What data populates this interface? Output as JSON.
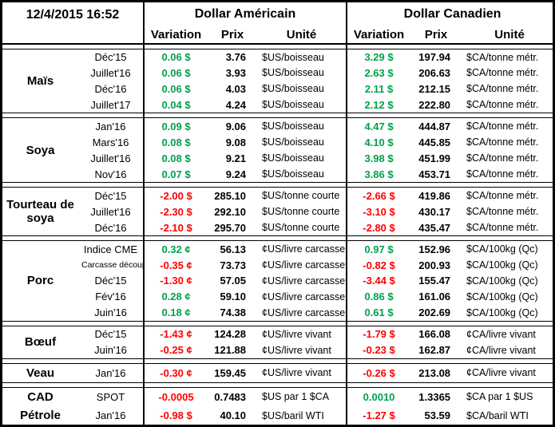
{
  "header": {
    "timestamp": "12/4/2015 16:52",
    "us_title": "Dollar Américain",
    "ca_title": "Dollar Canadien",
    "variation_label": "Variation",
    "prix_label": "Prix",
    "unite_label": "Unité"
  },
  "colors": {
    "positive": "#00A14B",
    "negative": "#FF0000",
    "border": "#000000",
    "background": "#FFFFFF"
  },
  "groups": [
    {
      "name": "Maïs",
      "sep_before": true,
      "rows": [
        {
          "contract": "Déc'15",
          "us_variation": "0.06 $",
          "us_prix": "3.76",
          "us_unite": "$US/boisseau",
          "ca_variation": "3.29 $",
          "ca_prix": "197.94",
          "ca_unite": "$CA/tonne métr."
        },
        {
          "contract": "Juillet'16",
          "us_variation": "0.06 $",
          "us_prix": "3.93",
          "us_unite": "$US/boisseau",
          "ca_variation": "2.63 $",
          "ca_prix": "206.63",
          "ca_unite": "$CA/tonne métr."
        },
        {
          "contract": "Déc'16",
          "us_variation": "0.06 $",
          "us_prix": "4.03",
          "us_unite": "$US/boisseau",
          "ca_variation": "2.11 $",
          "ca_prix": "212.15",
          "ca_unite": "$CA/tonne métr."
        },
        {
          "contract": "Juillet'17",
          "us_variation": "0.04 $",
          "us_prix": "4.24",
          "us_unite": "$US/boisseau",
          "ca_variation": "2.12 $",
          "ca_prix": "222.80",
          "ca_unite": "$CA/tonne métr."
        }
      ]
    },
    {
      "name": "Soya",
      "sep_before": true,
      "rows": [
        {
          "contract": "Jan'16",
          "us_variation": "0.09 $",
          "us_prix": "9.06",
          "us_unite": "$US/boisseau",
          "ca_variation": "4.47 $",
          "ca_prix": "444.87",
          "ca_unite": "$CA/tonne métr."
        },
        {
          "contract": "Mars'16",
          "us_variation": "0.08 $",
          "us_prix": "9.08",
          "us_unite": "$US/boisseau",
          "ca_variation": "4.10 $",
          "ca_prix": "445.85",
          "ca_unite": "$CA/tonne métr."
        },
        {
          "contract": "Juillet'16",
          "us_variation": "0.08 $",
          "us_prix": "9.21",
          "us_unite": "$US/boisseau",
          "ca_variation": "3.98 $",
          "ca_prix": "451.99",
          "ca_unite": "$CA/tonne métr."
        },
        {
          "contract": "Nov'16",
          "us_variation": "0.07 $",
          "us_prix": "9.24",
          "us_unite": "$US/boisseau",
          "ca_variation": "3.86 $",
          "ca_prix": "453.71",
          "ca_unite": "$CA/tonne métr."
        }
      ]
    },
    {
      "name": "Tourteau de soya",
      "sep_before": true,
      "rows": [
        {
          "contract": "Déc'15",
          "us_variation": "-2.00 $",
          "us_prix": "285.10",
          "us_unite": "$US/tonne courte",
          "ca_variation": "-2.66 $",
          "ca_prix": "419.86",
          "ca_unite": "$CA/tonne métr."
        },
        {
          "contract": "Juillet'16",
          "us_variation": "-2.30 $",
          "us_prix": "292.10",
          "us_unite": "$US/tonne courte",
          "ca_variation": "-3.10 $",
          "ca_prix": "430.17",
          "ca_unite": "$CA/tonne métr."
        },
        {
          "contract": "Déc'16",
          "us_variation": "-2.10 $",
          "us_prix": "295.70",
          "us_unite": "$US/tonne courte",
          "ca_variation": "-2.80 $",
          "ca_prix": "435.47",
          "ca_unite": "$CA/tonne métr."
        }
      ]
    },
    {
      "name": "Porc",
      "sep_before": true,
      "rows": [
        {
          "contract": "Indice CME",
          "us_variation": "0.32 ¢",
          "us_prix": "56.13",
          "us_unite": "¢US/livre carcasse",
          "ca_variation": "0.97 $",
          "ca_prix": "152.96",
          "ca_unite": "$CA/100kg (Qc)"
        },
        {
          "contract": "Carcasse découpée",
          "small": true,
          "us_variation": "-0.35 ¢",
          "us_prix": "73.73",
          "us_unite": "¢US/livre carcasse",
          "ca_variation": "-0.82 $",
          "ca_prix": "200.93",
          "ca_unite": "$CA/100kg (Qc)"
        },
        {
          "contract": "Déc'15",
          "us_variation": "-1.30 ¢",
          "us_prix": "57.05",
          "us_unite": "¢US/livre carcasse",
          "ca_variation": "-3.44 $",
          "ca_prix": "155.47",
          "ca_unite": "$CA/100kg (Qc)"
        },
        {
          "contract": "Fév'16",
          "us_variation": "0.28 ¢",
          "us_prix": "59.10",
          "us_unite": "¢US/livre carcasse",
          "ca_variation": "0.86 $",
          "ca_prix": "161.06",
          "ca_unite": "$CA/100kg (Qc)"
        },
        {
          "contract": "Juin'16",
          "us_variation": "0.18 ¢",
          "us_prix": "74.38",
          "us_unite": "¢US/livre carcasse",
          "ca_variation": "0.61 $",
          "ca_prix": "202.69",
          "ca_unite": "$CA/100kg (Qc)"
        }
      ]
    },
    {
      "name": "Bœuf",
      "sep_before": true,
      "rows": [
        {
          "contract": "Déc'15",
          "us_variation": "-1.43 ¢",
          "us_prix": "124.28",
          "us_unite": "¢US/livre vivant",
          "ca_variation": "-1.79 $",
          "ca_prix": "166.08",
          "ca_unite": "¢CA/livre vivant"
        },
        {
          "contract": "Juin'16",
          "us_variation": "-0.25 ¢",
          "us_prix": "121.88",
          "us_unite": "¢US/livre vivant",
          "ca_variation": "-0.23 $",
          "ca_prix": "162.87",
          "ca_unite": "¢CA/livre vivant"
        }
      ]
    },
    {
      "name": "Veau",
      "sep_before": true,
      "rows": [
        {
          "contract": "Jan'16",
          "us_variation": "-0.30 ¢",
          "us_prix": "159.45",
          "us_unite": "¢US/livre vivant",
          "ca_variation": "-0.26 $",
          "ca_prix": "213.08",
          "ca_unite": "¢CA/livre vivant"
        }
      ]
    },
    {
      "name": "CAD",
      "sep_before": true,
      "rows": [
        {
          "contract": "SPOT",
          "us_variation": "-0.0005",
          "us_prix": "0.7483",
          "us_unite": "$US par 1 $CA",
          "ca_variation": "0.0010",
          "ca_prix": "1.3365",
          "ca_unite": "$CA par 1 $US"
        }
      ]
    },
    {
      "name": "Pétrole",
      "sep_before": false,
      "rows": [
        {
          "contract": "Jan'16",
          "us_variation": "-0.98 $",
          "us_prix": "40.10",
          "us_unite": "$US/baril WTI",
          "ca_variation": "-1.27 $",
          "ca_prix": "53.59",
          "ca_unite": "$CA/baril WTI"
        }
      ]
    }
  ]
}
